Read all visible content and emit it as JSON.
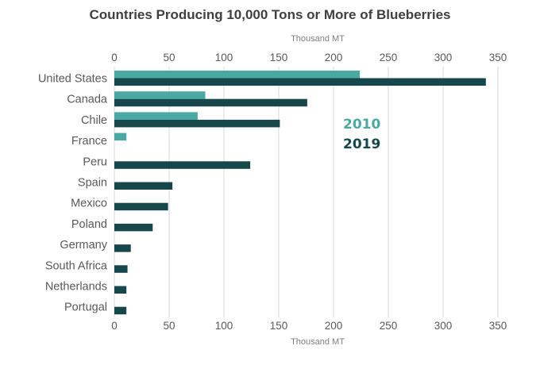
{
  "chart_data": {
    "type": "bar",
    "orientation": "horizontal",
    "title": "Countries Producing 10,000 Tons or More of Blueberries",
    "xlabel_top": "Thousand MT",
    "xlabel_bottom": "Thousand MT",
    "xlim": [
      0,
      350
    ],
    "xticks": [
      "0",
      "50",
      "100",
      "150",
      "200",
      "250",
      "300",
      "350"
    ],
    "grid": true,
    "legend_position": "right",
    "categories": [
      "United States",
      "Canada",
      "Chile",
      "France",
      "Peru",
      "Spain",
      "Mexico",
      "Poland",
      "Germany",
      "South Africa",
      "Netherlands",
      "Portugal"
    ],
    "series": [
      {
        "name": "2010",
        "color": "#4aa9a3",
        "values": [
          224,
          83,
          76,
          11,
          null,
          null,
          null,
          null,
          null,
          null,
          null,
          null
        ]
      },
      {
        "name": "2019",
        "color": "#16474a",
        "values": [
          339,
          176,
          151,
          null,
          124,
          53,
          49,
          35,
          15,
          12,
          11,
          11
        ]
      }
    ]
  }
}
